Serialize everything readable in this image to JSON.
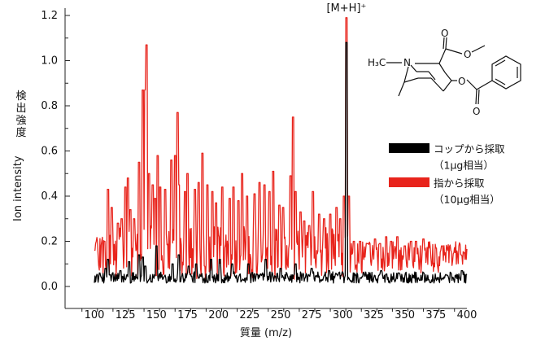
{
  "chart_data": {
    "type": "line",
    "xlabel": "質量 (m/z)",
    "ylabel_ja": "検出強度",
    "ylabel_en": "Ion intensity",
    "xlim": [
      85,
      400
    ],
    "ylim": [
      -0.05,
      1.2
    ],
    "x_ticks": [
      100,
      125,
      150,
      175,
      200,
      225,
      250,
      275,
      300,
      325,
      350,
      375,
      400
    ],
    "y_ticks": [
      0.0,
      0.2,
      0.4,
      0.6,
      0.8,
      1.0,
      1.2
    ],
    "grid": false,
    "legend_position": "right",
    "annotations": [
      {
        "text": "[M+H]⁺",
        "x": 303
      }
    ],
    "series": [
      {
        "name": "コップから採取（1μg相当）",
        "color": "#000000",
        "baseline": 0.03,
        "noise": 0.05,
        "peaks": [
          [
            109,
            0.08
          ],
          [
            111,
            0.12
          ],
          [
            121,
            0.07
          ],
          [
            128,
            0.11
          ],
          [
            136,
            0.14
          ],
          [
            139,
            0.13
          ],
          [
            141,
            0.09
          ],
          [
            150,
            0.18
          ],
          [
            163,
            0.1
          ],
          [
            168,
            0.14
          ],
          [
            176,
            0.09
          ],
          [
            182,
            0.1
          ],
          [
            194,
            0.12
          ],
          [
            201,
            0.12
          ],
          [
            211,
            0.1
          ],
          [
            224,
            0.1
          ],
          [
            238,
            0.12
          ],
          [
            250,
            0.08
          ],
          [
            262,
            0.1
          ],
          [
            275,
            0.08
          ],
          [
            289,
            0.07
          ],
          [
            303,
            1.08
          ],
          [
            310,
            0.05
          ],
          [
            331,
            0.07
          ],
          [
            345,
            0.06
          ],
          [
            365,
            0.06
          ],
          [
            384,
            0.05
          ],
          [
            396,
            0.07
          ]
        ]
      },
      {
        "name": "指から採取（10μg相当）",
        "color": "#e8241c",
        "baseline": 0.15,
        "noise": 0.12,
        "peaks": [
          [
            100,
            0.16
          ],
          [
            108,
            0.2
          ],
          [
            111,
            0.43
          ],
          [
            114,
            0.35
          ],
          [
            119,
            0.28
          ],
          [
            122,
            0.3
          ],
          [
            125,
            0.44
          ],
          [
            127,
            0.48
          ],
          [
            129,
            0.34
          ],
          [
            132,
            0.3
          ],
          [
            136,
            0.55
          ],
          [
            139,
            0.87
          ],
          [
            141,
            0.87
          ],
          [
            142,
            1.07
          ],
          [
            144,
            0.5
          ],
          [
            147,
            0.45
          ],
          [
            149,
            0.39
          ],
          [
            151,
            0.58
          ],
          [
            153,
            0.44
          ],
          [
            157,
            0.43
          ],
          [
            162,
            0.56
          ],
          [
            165,
            0.58
          ],
          [
            167,
            0.77
          ],
          [
            168,
            0.45
          ],
          [
            173,
            0.42
          ],
          [
            175,
            0.5
          ],
          [
            181,
            0.43
          ],
          [
            184,
            0.46
          ],
          [
            187,
            0.59
          ],
          [
            191,
            0.45
          ],
          [
            195,
            0.42
          ],
          [
            198,
            0.37
          ],
          [
            203,
            0.44
          ],
          [
            209,
            0.39
          ],
          [
            212,
            0.44
          ],
          [
            216,
            0.38
          ],
          [
            219,
            0.5
          ],
          [
            223,
            0.4
          ],
          [
            229,
            0.41
          ],
          [
            233,
            0.46
          ],
          [
            237,
            0.45
          ],
          [
            241,
            0.42
          ],
          [
            244,
            0.51
          ],
          [
            249,
            0.36
          ],
          [
            252,
            0.35
          ],
          [
            258,
            0.49
          ],
          [
            260,
            0.75
          ],
          [
            262,
            0.42
          ],
          [
            266,
            0.33
          ],
          [
            269,
            0.29
          ],
          [
            273,
            0.27
          ],
          [
            276,
            0.42
          ],
          [
            281,
            0.32
          ],
          [
            285,
            0.3
          ],
          [
            290,
            0.32
          ],
          [
            295,
            0.35
          ],
          [
            298,
            0.3
          ],
          [
            301,
            0.4
          ],
          [
            303,
            1.19
          ],
          [
            305,
            0.4
          ],
          [
            309,
            0.2
          ],
          [
            314,
            0.2
          ],
          [
            320,
            0.19
          ],
          [
            326,
            0.21
          ],
          [
            330,
            0.19
          ],
          [
            335,
            0.22
          ],
          [
            339,
            0.2
          ],
          [
            344,
            0.22
          ],
          [
            350,
            0.18
          ],
          [
            355,
            0.2
          ],
          [
            359,
            0.2
          ],
          [
            365,
            0.21
          ],
          [
            370,
            0.17
          ],
          [
            375,
            0.17
          ],
          [
            380,
            0.18
          ],
          [
            384,
            0.16
          ],
          [
            390,
            0.15
          ],
          [
            395,
            0.14
          ],
          [
            399,
            0.12
          ]
        ]
      }
    ]
  },
  "structure": {
    "labels": [
      "H₃C",
      "N",
      "O",
      "O",
      "O",
      "O"
    ]
  }
}
